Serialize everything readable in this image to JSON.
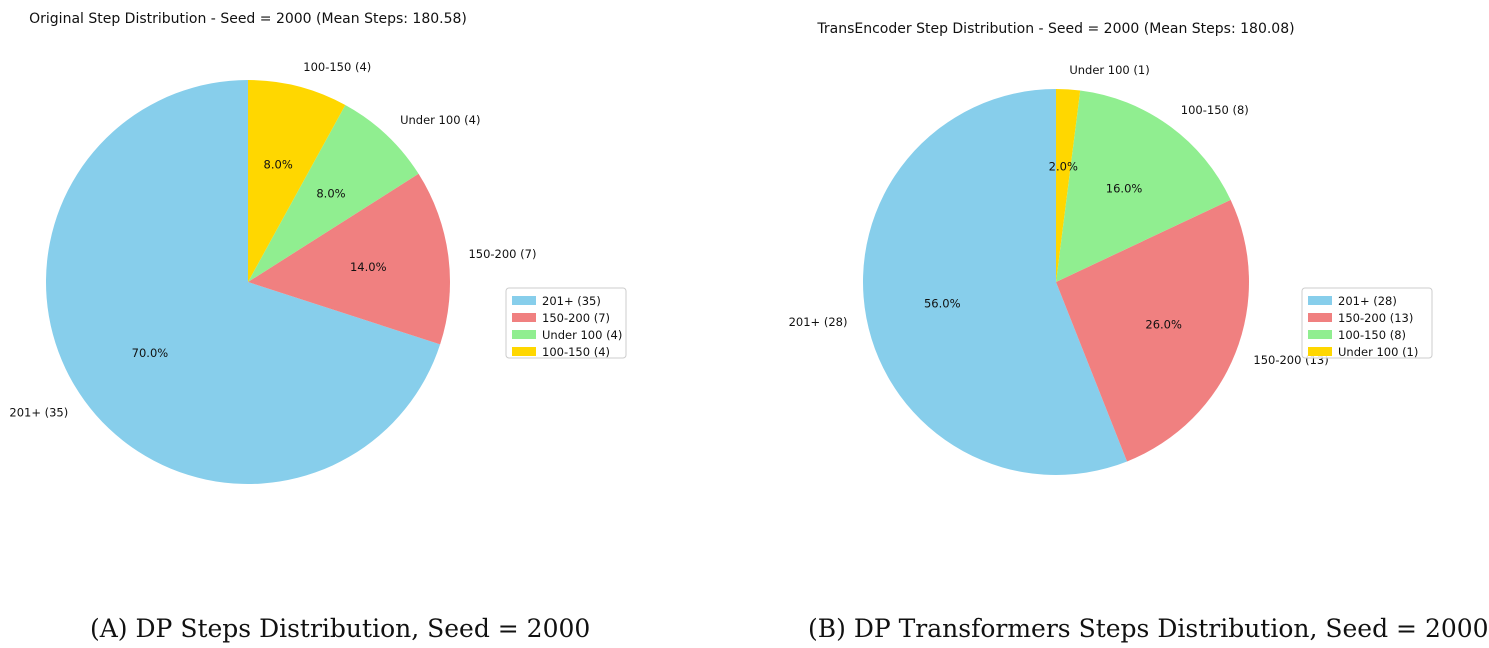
{
  "chart_data": [
    {
      "type": "pie",
      "title": "Original Step Distribution - Seed = 2000 (Mean Steps: 180.58)",
      "slices": [
        {
          "label": "201+ (35)",
          "value": 35,
          "percent": "70.0%",
          "color": "#87CEEB"
        },
        {
          "label": "150-200 (7)",
          "value": 7,
          "percent": "14.0%",
          "color": "#F08080"
        },
        {
          "label": "Under 100 (4)",
          "value": 4,
          "percent": "8.0%",
          "color": "#90EE90"
        },
        {
          "label": "100-150 (4)",
          "value": 4,
          "percent": "8.0%",
          "color": "#FFD700"
        }
      ],
      "legend": [
        "201+ (35)",
        "150-200 (7)",
        "Under 100 (4)",
        "100-150 (4)"
      ],
      "legend_placement": "right"
    },
    {
      "type": "pie",
      "title": "TransEncoder Step Distribution - Seed = 2000 (Mean Steps: 180.08)",
      "slices": [
        {
          "label": "201+ (28)",
          "value": 28,
          "percent": "56.0%",
          "color": "#87CEEB"
        },
        {
          "label": "150-200 (13)",
          "value": 13,
          "percent": "26.0%",
          "color": "#F08080"
        },
        {
          "label": "100-150 (8)",
          "value": 8,
          "percent": "16.0%",
          "color": "#90EE90"
        },
        {
          "label": "Under 100 (1)",
          "value": 1,
          "percent": "2.0%",
          "color": "#FFD700"
        }
      ],
      "legend": [
        "201+ (28)",
        "150-200 (13)",
        "100-150 (8)",
        "Under 100 (1)"
      ],
      "legend_placement": "right"
    }
  ],
  "captions": {
    "a": "(A) DP Steps Distribution, Seed = 2000",
    "b": "(B) DP Transformers Steps Distribution, Seed = 2000"
  }
}
